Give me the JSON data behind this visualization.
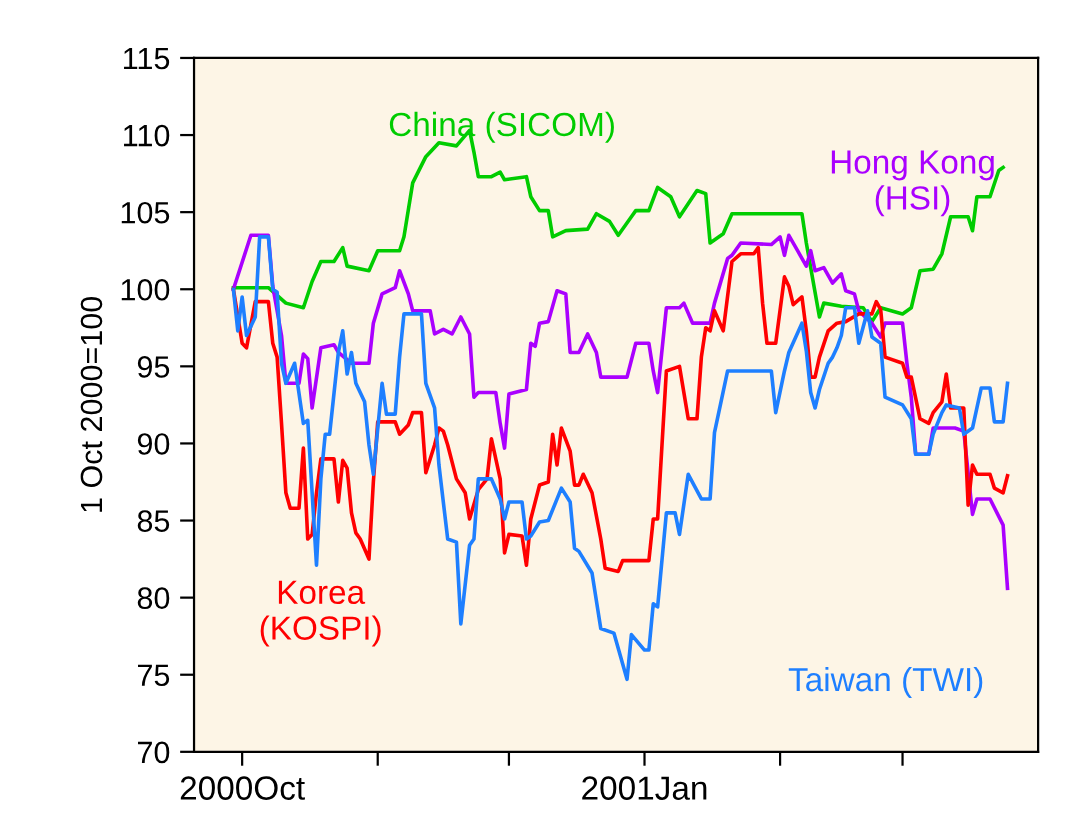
{
  "chart_data": {
    "type": "line",
    "ylabel": "1 Oct 2000=100",
    "xlim": [
      "2000-09-20",
      "2001-04-01"
    ],
    "xticks": [
      {
        "value": "2000-10-01",
        "label": "2000Oct"
      },
      {
        "value": "2000-11-01",
        "label": null
      },
      {
        "value": "2000-12-01",
        "label": null
      },
      {
        "value": "2001-01-01",
        "label": "2001Jan"
      },
      {
        "value": "2001-02-01",
        "label": null
      },
      {
        "value": "2001-03-01",
        "label": null
      }
    ],
    "ylim": [
      70,
      115
    ],
    "yticks": [
      70,
      75,
      80,
      85,
      90,
      95,
      100,
      105,
      110,
      115
    ],
    "grid": false,
    "legend": false,
    "series": [
      {
        "name": "China (SICOM)",
        "color": "#00cc00",
        "x": [
          "2000-09-29",
          "2000-10-07",
          "2000-10-11",
          "2000-10-15",
          "2000-10-17",
          "2000-10-19",
          "2000-10-22",
          "2000-10-24",
          "2000-10-25",
          "2000-10-30",
          "2000-11-01",
          "2000-11-06",
          "2000-11-07",
          "2000-11-09",
          "2000-11-12",
          "2000-11-15",
          "2000-11-19",
          "2000-11-22",
          "2000-11-23",
          "2000-11-24",
          "2000-11-27",
          "2000-11-29",
          "2000-11-30",
          "2000-12-05",
          "2000-12-06",
          "2000-12-08",
          "2000-12-10",
          "2000-12-11",
          "2000-12-14",
          "2000-12-19",
          "2000-12-21",
          "2000-12-24",
          "2000-12-26",
          "2000-12-29",
          "2000-12-30",
          "2001-01-02",
          "2001-01-04",
          "2001-01-07",
          "2001-01-09",
          "2001-01-13",
          "2001-01-15",
          "2001-01-16",
          "2001-01-19",
          "2001-01-21",
          "2001-02-06",
          "2001-02-07",
          "2001-02-10",
          "2001-02-11",
          "2001-02-15",
          "2001-02-20",
          "2001-02-22",
          "2001-02-24",
          "2001-03-01",
          "2001-03-03",
          "2001-03-05",
          "2001-03-08",
          "2001-03-10",
          "2001-03-12",
          "2001-03-16",
          "2001-03-17",
          "2001-03-18",
          "2001-03-21",
          "2001-03-23",
          "2001-03-24"
        ],
        "values": [
          100.1,
          100.1,
          99.1,
          98.8,
          100.5,
          101.8,
          101.8,
          102.7,
          101.5,
          101.2,
          102.5,
          102.5,
          103.4,
          106.9,
          108.6,
          109.5,
          109.3,
          110.3,
          108.9,
          107.3,
          107.3,
          107.6,
          107.1,
          107.3,
          106,
          105.1,
          105.1,
          103.4,
          103.8,
          103.9,
          104.9,
          104.4,
          103.5,
          104.7,
          105.1,
          105.1,
          106.6,
          106,
          104.7,
          106.4,
          106.2,
          103,
          103.6,
          104.9,
          104.9,
          103,
          98.2,
          99.1,
          98.9,
          98.8,
          97.9,
          98.8,
          98.4,
          98.8,
          101.2,
          101.3,
          102.3,
          104.7,
          104.7,
          103.8,
          106,
          106,
          107.7,
          107.9
        ]
      },
      {
        "name": "Hong Kong\n(HSI)",
        "color": "#aa00ff",
        "x": [
          "2000-09-29",
          "2000-10-03",
          "2000-10-07",
          "2000-10-08",
          "2000-10-10",
          "2000-10-11",
          "2000-10-14",
          "2000-10-15",
          "2000-10-16",
          "2000-10-17",
          "2000-10-19",
          "2000-10-22",
          "2000-10-23",
          "2000-10-26",
          "2000-10-30",
          "2000-10-31",
          "2000-11-02",
          "2000-11-05",
          "2000-11-06",
          "2000-11-08",
          "2000-11-09",
          "2000-11-13",
          "2000-11-14",
          "2000-11-16",
          "2000-11-18",
          "2000-11-20",
          "2000-11-22",
          "2000-11-23",
          "2000-11-24",
          "2000-11-28",
          "2000-11-29",
          "2000-11-30",
          "2000-12-01",
          "2000-12-05",
          "2000-12-06",
          "2000-12-07",
          "2000-12-08",
          "2000-12-10",
          "2000-12-12",
          "2000-12-14",
          "2000-12-15",
          "2000-12-17",
          "2000-12-19",
          "2000-12-21",
          "2000-12-22",
          "2000-12-28",
          "2000-12-30",
          "2001-01-02",
          "2001-01-03",
          "2001-01-04",
          "2001-01-06",
          "2001-01-09",
          "2001-01-10",
          "2001-01-12",
          "2001-01-16",
          "2001-01-17",
          "2001-01-20",
          "2001-01-21",
          "2001-01-23",
          "2001-01-30",
          "2001-02-01",
          "2001-02-02",
          "2001-02-03",
          "2001-02-05",
          "2001-02-07",
          "2001-02-08",
          "2001-02-09",
          "2001-02-11",
          "2001-02-13",
          "2001-02-15",
          "2001-02-16",
          "2001-02-18",
          "2001-02-19",
          "2001-02-22",
          "2001-02-24",
          "2001-02-25",
          "2001-03-01",
          "2001-03-02",
          "2001-03-03",
          "2001-03-04",
          "2001-03-07",
          "2001-03-08",
          "2001-03-13",
          "2001-03-15",
          "2001-03-17",
          "2001-03-18",
          "2001-03-21",
          "2001-03-24",
          "2001-03-25"
        ],
        "values": [
          100,
          103.5,
          103.5,
          100.2,
          97,
          93.9,
          93.9,
          95.8,
          95.5,
          92.3,
          96.2,
          96.4,
          95.9,
          95.2,
          95.2,
          97.8,
          99.7,
          100.1,
          101.2,
          99.7,
          98.6,
          98.6,
          97.1,
          97.4,
          97.1,
          98.2,
          97.1,
          93,
          93.3,
          93.3,
          91.3,
          89.7,
          93.2,
          93.5,
          96.5,
          96.3,
          97.8,
          97.9,
          99.9,
          99.7,
          95.9,
          95.9,
          97.1,
          95.9,
          94.3,
          94.3,
          96.5,
          96.5,
          94.7,
          93.3,
          98.8,
          98.8,
          99.1,
          97.8,
          97.8,
          99.1,
          102,
          102.2,
          103,
          102.9,
          103.4,
          102.2,
          103.5,
          102.5,
          101.5,
          102.5,
          101.2,
          101.4,
          100.4,
          101,
          99.9,
          99.7,
          98.6,
          97.8,
          96.9,
          97.8,
          97.8,
          95.2,
          93,
          89.3,
          89.3,
          91,
          91,
          90.8,
          85.4,
          86.4,
          86.4,
          84.7,
          80.6
        ]
      },
      {
        "name": "Korea\n(KOSPI)",
        "color": "#ff0000",
        "x": [
          "2000-09-29",
          "2000-10-01",
          "2000-10-02",
          "2000-10-04",
          "2000-10-07",
          "2000-10-08",
          "2000-10-09",
          "2000-10-10",
          "2000-10-11",
          "2000-10-12",
          "2000-10-14",
          "2000-10-15",
          "2000-10-16",
          "2000-10-17",
          "2000-10-18",
          "2000-10-19",
          "2000-10-22",
          "2000-10-23",
          "2000-10-24",
          "2000-10-25",
          "2000-10-26",
          "2000-10-27",
          "2000-10-28",
          "2000-10-30",
          "2000-10-31",
          "2000-11-01",
          "2000-11-05",
          "2000-11-06",
          "2000-11-08",
          "2000-11-09",
          "2000-11-11",
          "2000-11-12",
          "2000-11-14",
          "2000-11-15",
          "2000-11-16",
          "2000-11-17",
          "2000-11-19",
          "2000-11-21",
          "2000-11-22",
          "2000-11-24",
          "2000-11-26",
          "2000-11-27",
          "2000-11-29",
          "2000-11-30",
          "2000-12-01",
          "2000-12-04",
          "2000-12-05",
          "2000-12-06",
          "2000-12-08",
          "2000-12-10",
          "2000-12-11",
          "2000-12-12",
          "2000-12-13",
          "2000-12-15",
          "2000-12-16",
          "2000-12-17",
          "2000-12-18",
          "2000-12-20",
          "2000-12-22",
          "2000-12-23",
          "2000-12-26",
          "2000-12-27",
          "2001-01-02",
          "2001-01-03",
          "2001-01-04",
          "2001-01-06",
          "2001-01-09",
          "2001-01-11",
          "2001-01-13",
          "2001-01-14",
          "2001-01-15",
          "2001-01-16",
          "2001-01-17",
          "2001-01-19",
          "2001-01-21",
          "2001-01-23",
          "2001-01-26",
          "2001-01-27",
          "2001-01-28",
          "2001-01-29",
          "2001-01-31",
          "2001-02-02",
          "2001-02-03",
          "2001-02-04",
          "2001-02-06",
          "2001-02-07",
          "2001-02-08",
          "2001-02-09",
          "2001-02-10",
          "2001-02-12",
          "2001-02-14",
          "2001-02-16",
          "2001-02-19",
          "2001-02-22",
          "2001-02-23",
          "2001-02-24",
          "2001-02-25",
          "2001-03-01",
          "2001-03-02",
          "2001-03-03",
          "2001-03-05",
          "2001-03-07",
          "2001-03-08",
          "2001-03-10",
          "2001-03-11",
          "2001-03-12",
          "2001-03-15",
          "2001-03-16",
          "2001-03-17",
          "2001-03-18",
          "2001-03-21",
          "2001-03-22",
          "2001-03-24",
          "2001-03-25"
        ],
        "values": [
          100,
          96.5,
          96.2,
          99.2,
          99.2,
          96.5,
          95.6,
          91.3,
          86.8,
          85.8,
          85.8,
          89.7,
          83.8,
          84.1,
          86.8,
          89,
          89,
          86.2,
          88.9,
          88.4,
          85.5,
          84.2,
          83.8,
          82.5,
          87.5,
          91.4,
          91.4,
          90.6,
          91.2,
          92,
          92,
          88.1,
          89.9,
          91,
          90.8,
          89.9,
          87.7,
          86.8,
          85.1,
          87,
          87.7,
          90.3,
          87.7,
          82.9,
          84.1,
          84,
          82.1,
          85.1,
          87.3,
          87.5,
          90.6,
          88.6,
          91,
          89.5,
          87.3,
          87.3,
          88,
          86.8,
          83.8,
          81.9,
          81.7,
          82.4,
          82.4,
          85.1,
          85.1,
          94.7,
          95,
          91.6,
          91.6,
          95.6,
          97.5,
          97.3,
          98.6,
          97.3,
          101.8,
          102.3,
          102.3,
          102.7,
          99.1,
          96.5,
          96.5,
          100.8,
          100.2,
          99,
          99.5,
          97.3,
          94.3,
          94.3,
          95.6,
          97.3,
          97.8,
          97.9,
          98.4,
          98.4,
          99.2,
          98.7,
          95.6,
          95.2,
          94.3,
          94.3,
          91.6,
          91.3,
          92,
          92.7,
          94.5,
          92.3,
          92.3,
          86,
          88.6,
          88,
          88,
          87.1,
          86.8,
          87.9
        ]
      },
      {
        "name": "Taiwan (TWI)",
        "color": "#1e7fff",
        "x": [
          "2000-09-29",
          "2000-09-30",
          "2000-10-01",
          "2000-10-02",
          "2000-10-04",
          "2000-10-05",
          "2000-10-07",
          "2000-10-08",
          "2000-10-09",
          "2000-10-10",
          "2000-10-11",
          "2000-10-13",
          "2000-10-15",
          "2000-10-16",
          "2000-10-18",
          "2000-10-19",
          "2000-10-20",
          "2000-10-21",
          "2000-10-23",
          "2000-10-24",
          "2000-10-25",
          "2000-10-26",
          "2000-10-27",
          "2000-10-29",
          "2000-10-30",
          "2000-10-31",
          "2000-11-02",
          "2000-11-03",
          "2000-11-05",
          "2000-11-06",
          "2000-11-07",
          "2000-11-11",
          "2000-11-12",
          "2000-11-14",
          "2000-11-15",
          "2000-11-17",
          "2000-11-19",
          "2000-11-20",
          "2000-11-22",
          "2000-11-23",
          "2000-11-24",
          "2000-11-27",
          "2000-11-29",
          "2000-11-30",
          "2000-12-01",
          "2000-12-04",
          "2000-12-05",
          "2000-12-06",
          "2000-12-08",
          "2000-12-10",
          "2000-12-13",
          "2000-12-15",
          "2000-12-16",
          "2000-12-17",
          "2000-12-20",
          "2000-12-22",
          "2000-12-25",
          "2000-12-28",
          "2000-12-29",
          "2001-01-01",
          "2001-01-02",
          "2001-01-03",
          "2001-01-04",
          "2001-01-06",
          "2001-01-08",
          "2001-01-09",
          "2001-01-11",
          "2001-01-14",
          "2001-01-16",
          "2001-01-17",
          "2001-01-20",
          "2001-01-30",
          "2001-01-31",
          "2001-02-02",
          "2001-02-03",
          "2001-02-06",
          "2001-02-07",
          "2001-02-08",
          "2001-02-09",
          "2001-02-10",
          "2001-02-12",
          "2001-02-13",
          "2001-02-14",
          "2001-02-15",
          "2001-02-16",
          "2001-02-18",
          "2001-02-19",
          "2001-02-21",
          "2001-02-22",
          "2001-02-24",
          "2001-02-25",
          "2001-03-01",
          "2001-03-03",
          "2001-03-04",
          "2001-03-07",
          "2001-03-08",
          "2001-03-10",
          "2001-03-11",
          "2001-03-14",
          "2001-03-15",
          "2001-03-17",
          "2001-03-19",
          "2001-03-21",
          "2001-03-22",
          "2001-03-24",
          "2001-03-25"
        ],
        "values": [
          100,
          97.3,
          99.5,
          97,
          98.2,
          103.4,
          103.4,
          100,
          99.8,
          95.2,
          93.9,
          95.2,
          91.3,
          91.5,
          82.1,
          87.7,
          90.6,
          90.6,
          95.9,
          97.3,
          94.5,
          95.9,
          93.9,
          92.7,
          89.9,
          88,
          93.9,
          91.9,
          91.9,
          95.6,
          98.4,
          98.4,
          93.9,
          92.3,
          88.6,
          83.8,
          83.6,
          78.3,
          83.4,
          83.8,
          87.7,
          87.7,
          86.4,
          85.1,
          86.2,
          86.2,
          83.8,
          84,
          84.9,
          85,
          87.1,
          86.2,
          83.2,
          83,
          81.6,
          78,
          77.7,
          74.7,
          77.6,
          76.6,
          76.6,
          79.6,
          79.4,
          85.5,
          85.5,
          84.1,
          88,
          86.4,
          86.4,
          90.7,
          94.7,
          94.7,
          92,
          94.7,
          95.9,
          97.8,
          96,
          93.3,
          92.3,
          93.5,
          95.2,
          95.6,
          96.2,
          97,
          98.8,
          98.8,
          96.5,
          98.6,
          96.9,
          96.5,
          93,
          92.5,
          91.6,
          89.3,
          89.3,
          90.6,
          92,
          92.5,
          92.3,
          90.6,
          91,
          93.6,
          93.6,
          91.4,
          91.4,
          93.9
        ]
      }
    ]
  }
}
